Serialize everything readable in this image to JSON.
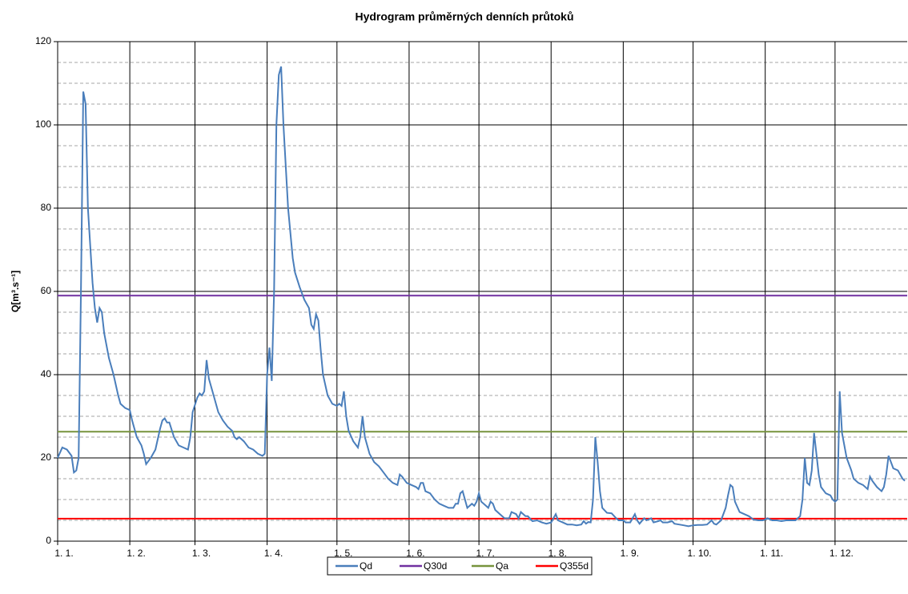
{
  "chart_data": {
    "type": "line",
    "title": "Hydrogram průměrných denních průtoků",
    "y_label": "Q[m³.s⁻¹]",
    "xlim": [
      0,
      365
    ],
    "ylim": [
      0,
      120
    ],
    "xticks": [
      {
        "value": 0,
        "label": "1. 1."
      },
      {
        "value": 31,
        "label": "1. 2."
      },
      {
        "value": 59,
        "label": "1. 3."
      },
      {
        "value": 90,
        "label": "1. 4."
      },
      {
        "value": 120,
        "label": "1. 5."
      },
      {
        "value": 151,
        "label": "1. 6."
      },
      {
        "value": 181,
        "label": "1. 7."
      },
      {
        "value": 212,
        "label": "1. 8."
      },
      {
        "value": 243,
        "label": "1. 9."
      },
      {
        "value": 273,
        "label": "1. 10."
      },
      {
        "value": 304,
        "label": "1. 11."
      },
      {
        "value": 334,
        "label": "1. 12."
      }
    ],
    "yticks": [
      0,
      20,
      40,
      60,
      80,
      100,
      120
    ],
    "yminorticks": [
      5,
      10,
      15,
      25,
      30,
      35,
      45,
      50,
      55,
      65,
      70,
      75,
      85,
      90,
      95,
      105,
      110,
      115
    ],
    "grid": true,
    "legend": "bottom",
    "series": [
      {
        "name": "Qd",
        "color": "#4a7ebb",
        "x": [
          0,
          2,
          4,
          6,
          7,
          8,
          9,
          10,
          11,
          12,
          13,
          15,
          16,
          17,
          18,
          19,
          20,
          22,
          24,
          26,
          27,
          29,
          31,
          32,
          34,
          36,
          37,
          38,
          40,
          42,
          44,
          45,
          46,
          47,
          48,
          50,
          52,
          54,
          56,
          57,
          58,
          60,
          61,
          62,
          63,
          64,
          65,
          67,
          69,
          71,
          73,
          75,
          76,
          77,
          78,
          80,
          82,
          84,
          86,
          88,
          89,
          90,
          91,
          92,
          93,
          94,
          95,
          96,
          97,
          99,
          101,
          102,
          104,
          106,
          108,
          109,
          110,
          111,
          112,
          113,
          114,
          116,
          118,
          120,
          121,
          122,
          123,
          124,
          125,
          127,
          129,
          130,
          131,
          132,
          134,
          136,
          138,
          140,
          142,
          144,
          146,
          147,
          148,
          150,
          152,
          154,
          155,
          156,
          157,
          158,
          160,
          162,
          164,
          166,
          168,
          170,
          171,
          172,
          173,
          174,
          175,
          176,
          178,
          179,
          180,
          181,
          182,
          184,
          185,
          186,
          187,
          188,
          190,
          192,
          194,
          195,
          197,
          198,
          199,
          201,
          202,
          204,
          206,
          208,
          210,
          212,
          213,
          214,
          215,
          217,
          219,
          221,
          223,
          225,
          226,
          227,
          228,
          229,
          230,
          231,
          232,
          233,
          234,
          236,
          238,
          240,
          241,
          243,
          244,
          246,
          247,
          248,
          249,
          250,
          252,
          253,
          255,
          256,
          258,
          259,
          260,
          262,
          264,
          265,
          267,
          269,
          271,
          273,
          275,
          277,
          279,
          281,
          282,
          283,
          285,
          287,
          288,
          289,
          290,
          291,
          293,
          295,
          297,
          299,
          301,
          303,
          305,
          307,
          309,
          311,
          313,
          315,
          317,
          319,
          320,
          321,
          322,
          323,
          324,
          325,
          326,
          327,
          328,
          330,
          332,
          333,
          334,
          335,
          336,
          337,
          338,
          339,
          341,
          342,
          344,
          346,
          348,
          349,
          350,
          352,
          353,
          354,
          355,
          356,
          357,
          358,
          359,
          361,
          362,
          363,
          364
        ],
        "values": [
          20,
          22.5,
          22,
          20.5,
          16.5,
          17,
          20,
          60,
          108,
          105,
          80,
          62,
          56,
          52.5,
          56,
          55,
          50,
          44,
          40,
          35,
          33,
          32,
          31.5,
          29,
          25,
          23,
          21,
          18.5,
          20,
          22,
          27,
          29,
          29.5,
          28.5,
          28.5,
          25,
          23,
          22.5,
          22,
          25,
          31,
          34.5,
          35.5,
          35,
          36,
          43.5,
          39,
          35,
          31,
          29,
          27.5,
          26.5,
          25,
          24.5,
          25,
          24,
          22.5,
          22,
          21,
          20.5,
          21,
          40,
          46.5,
          38.5,
          60,
          100,
          112,
          114,
          100,
          80,
          68,
          64.5,
          61,
          58,
          56,
          52,
          51,
          54.5,
          53,
          46,
          40,
          35,
          33,
          32.5,
          33,
          32.5,
          36,
          30,
          26.5,
          24,
          22.5,
          25,
          30,
          25,
          21,
          19,
          18,
          16.5,
          15,
          14,
          13.5,
          16,
          15.5,
          14,
          13.5,
          13,
          12.5,
          14,
          14,
          12,
          11.5,
          10,
          9,
          8.5,
          8,
          8,
          9,
          9,
          11.5,
          12,
          10,
          8,
          9,
          8.5,
          9.5,
          11.5,
          9.5,
          8.5,
          8,
          9.5,
          9,
          7.5,
          6.5,
          5.5,
          5.5,
          7,
          6.5,
          5.5,
          7,
          6,
          6,
          4.8,
          5,
          4.5,
          4.2,
          4.5,
          5.5,
          6.5,
          5,
          4.5,
          4,
          4,
          3.8,
          4,
          4.8,
          4.2,
          4.6,
          4.5,
          10,
          25,
          19,
          12,
          8,
          6.8,
          6.7,
          5.5,
          5,
          5,
          4.5,
          4.5,
          5.5,
          6.5,
          5,
          4.2,
          5.5,
          5,
          5.5,
          4.5,
          4.8,
          5,
          4.5,
          4.5,
          4.8,
          4.2,
          4,
          3.8,
          3.6,
          3.8,
          3.9,
          3.9,
          4,
          5,
          4.2,
          4,
          5,
          8,
          11,
          13.5,
          13,
          9.5,
          7,
          6.5,
          6,
          5.2,
          5,
          5,
          5.5,
          5,
          5,
          4.8,
          5,
          5,
          5,
          6,
          10,
          20,
          14,
          13.5,
          17,
          26,
          21,
          16,
          13,
          11.5,
          11,
          10,
          9.5,
          10,
          36,
          26,
          23,
          20,
          17,
          15,
          14,
          13.5,
          12.5,
          15.5,
          14.5,
          13,
          12.5,
          12,
          13,
          16,
          20.5,
          19,
          17.5,
          17,
          16,
          15,
          14.5
        ]
      },
      {
        "name": "Q30d",
        "color": "#7030a0",
        "x": [
          0,
          365
        ],
        "values": [
          59,
          59
        ]
      },
      {
        "name": "Qa",
        "color": "#77933c",
        "x": [
          0,
          365
        ],
        "values": [
          26.3,
          26.3
        ]
      },
      {
        "name": "Q355d",
        "color": "#ff0000",
        "x": [
          0,
          365
        ],
        "values": [
          5.4,
          5.4
        ]
      }
    ]
  }
}
